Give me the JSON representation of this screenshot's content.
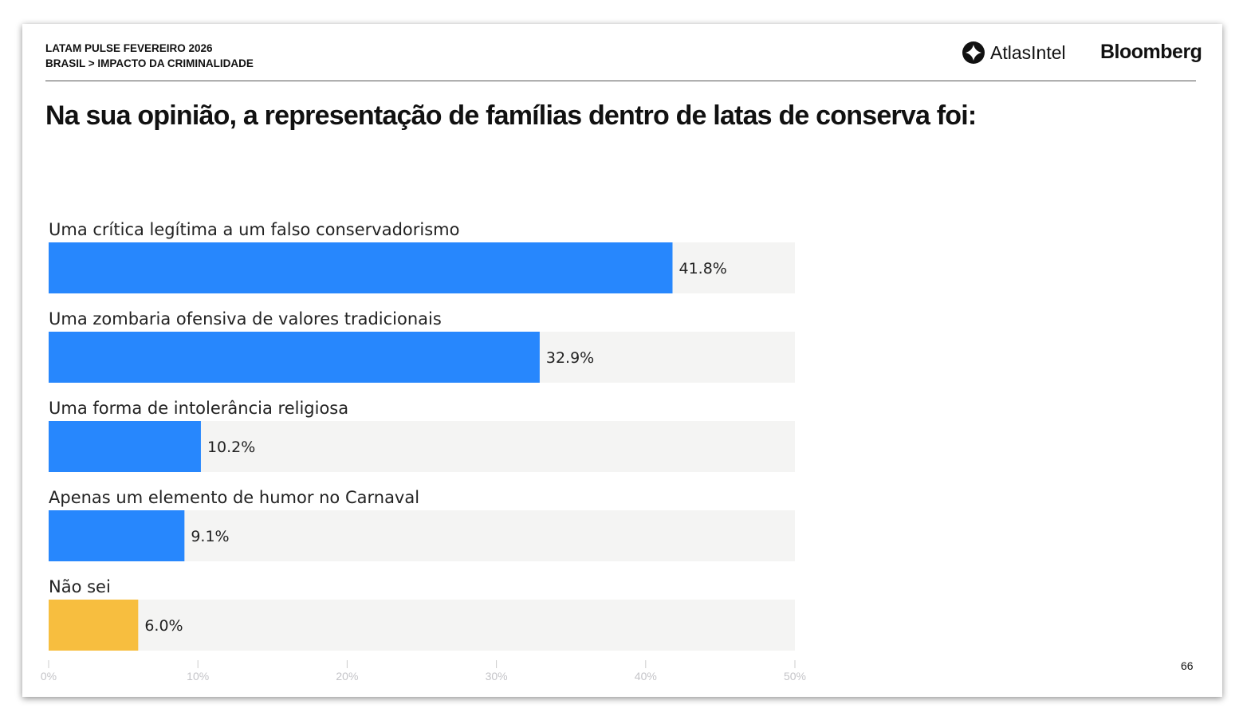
{
  "header": {
    "line1": "LATAM PULSE FEVEREIRO 2026",
    "line2": "BRASIL > IMPACTO DA CRIMINALIDADE"
  },
  "logos": {
    "atlas": "AtlasIntel",
    "bloomberg": "Bloomberg"
  },
  "page_number": "66",
  "chart_data": {
    "type": "bar",
    "orientation": "horizontal",
    "title": "Na sua opinião, a representação de famílias dentro de latas de conserva foi:",
    "categories": [
      "Uma crítica legítima a um falso conservadorismo",
      "Uma zombaria ofensiva de valores tradicionais",
      "Uma forma de intolerância religiosa",
      "Apenas um elemento de humor no Carnaval",
      "Não sei"
    ],
    "values": [
      41.8,
      32.9,
      10.2,
      9.1,
      6.0
    ],
    "data_labels": [
      "41.8%",
      "32.9%",
      "10.2%",
      "9.1%",
      "6.0%"
    ],
    "colors": [
      "#2787fd",
      "#2787fd",
      "#2787fd",
      "#2787fd",
      "#f7be3f"
    ],
    "track_color": "#f4f4f3",
    "xlim": [
      0,
      50
    ],
    "xticks": [
      "0%",
      "10%",
      "20%",
      "30%",
      "40%",
      "50%"
    ],
    "grid": false,
    "legend": "none"
  }
}
